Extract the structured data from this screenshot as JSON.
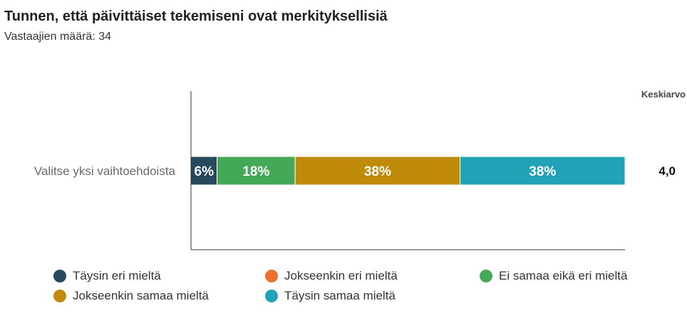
{
  "chart_data": {
    "type": "bar",
    "orientation": "horizontal",
    "stacked": true,
    "percent_stacked": true,
    "title": "Tunnen, että päivittäiset tekemiseni ovat merkityksellisiä",
    "subtitle": "Vastaajien määrä: 34",
    "categories": [
      "Valitse yksi vaihtoehdoista"
    ],
    "series": [
      {
        "name": "Täysin eri mieltä",
        "color": "#264a5c",
        "values": [
          6
        ],
        "label": "6%"
      },
      {
        "name": "Jokseenkin eri mieltä",
        "color": "#ef6f2e",
        "values": [
          0
        ],
        "label": ""
      },
      {
        "name": "Ei samaa eikä eri mieltä",
        "color": "#43a956",
        "values": [
          18
        ],
        "label": "18%"
      },
      {
        "name": "Jokseenkin samaa mieltä",
        "color": "#c08b0a",
        "values": [
          38
        ],
        "label": "38%"
      },
      {
        "name": "Täysin samaa mieltä",
        "color": "#22a2b6",
        "values": [
          38
        ],
        "label": "38%"
      }
    ],
    "xlim": [
      0,
      100
    ],
    "average_header": "Keskiarvo",
    "averages": [
      "4,0"
    ],
    "legend_position": "bottom",
    "grid": false
  }
}
